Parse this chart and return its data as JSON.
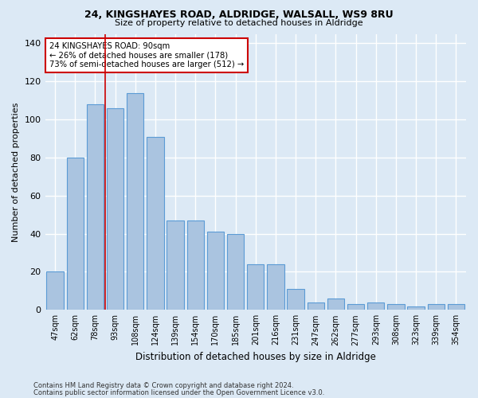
{
  "title1": "24, KINGSHAYES ROAD, ALDRIDGE, WALSALL, WS9 8RU",
  "title2": "Size of property relative to detached houses in Aldridge",
  "xlabel": "Distribution of detached houses by size in Aldridge",
  "ylabel": "Number of detached properties",
  "categories": [
    "47sqm",
    "62sqm",
    "78sqm",
    "93sqm",
    "108sqm",
    "124sqm",
    "139sqm",
    "154sqm",
    "170sqm",
    "185sqm",
    "201sqm",
    "216sqm",
    "231sqm",
    "247sqm",
    "262sqm",
    "277sqm",
    "293sqm",
    "308sqm",
    "323sqm",
    "339sqm",
    "354sqm"
  ],
  "values": [
    20,
    80,
    108,
    106,
    114,
    91,
    47,
    47,
    41,
    40,
    24,
    24,
    11,
    4,
    6,
    3,
    4,
    3,
    2,
    3,
    3
  ],
  "bar_color": "#aac4e0",
  "bar_edge_color": "#5b9bd5",
  "vline_x": 2.5,
  "vline_color": "#cc0000",
  "annotation_lines": [
    "24 KINGSHAYES ROAD: 90sqm",
    "← 26% of detached houses are smaller (178)",
    "73% of semi-detached houses are larger (512) →"
  ],
  "annotation_box_color": "#ffffff",
  "annotation_box_edge_color": "#cc0000",
  "bg_color": "#dce9f5",
  "plot_bg_color": "#dce9f5",
  "grid_color": "#ffffff",
  "ylim": [
    0,
    145
  ],
  "yticks": [
    0,
    20,
    40,
    60,
    80,
    100,
    120,
    140
  ],
  "footer1": "Contains HM Land Registry data © Crown copyright and database right 2024.",
  "footer2": "Contains public sector information licensed under the Open Government Licence v3.0."
}
